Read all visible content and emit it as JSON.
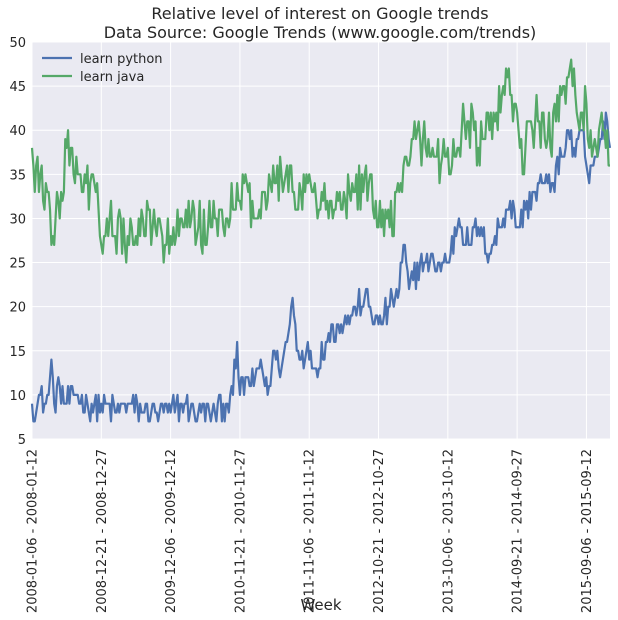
{
  "chart_data": {
    "type": "line",
    "title": "Relative level of interest on Google trends",
    "subtitle": "Data Source: Google Trends (www.google.com/trends)",
    "xlabel": "Week",
    "ylabel": "",
    "ylim": [
      5,
      50
    ],
    "yticks": [
      5,
      10,
      15,
      20,
      25,
      30,
      35,
      40,
      45,
      50
    ],
    "xticks": [
      {
        "label": "2008-01-06 - 2008-01-12",
        "index": 0
      },
      {
        "label": "2008-12-21 - 2008-12-27",
        "index": 50
      },
      {
        "label": "2009-12-06 - 2009-12-12",
        "index": 100
      },
      {
        "label": "2010-11-21 - 2010-11-27",
        "index": 150
      },
      {
        "label": "2011-11-06 - 2011-11-12",
        "index": 200
      },
      {
        "label": "2012-10-21 - 2012-10-27",
        "index": 250
      },
      {
        "label": "2013-10-06 - 2013-10-12",
        "index": 300
      },
      {
        "label": "2014-09-21 - 2014-09-27",
        "index": 350
      },
      {
        "label": "2015-09-06 - 2015-09-12",
        "index": 400
      }
    ],
    "n_points": 418,
    "legend_position": "top-left",
    "grid": true,
    "series": [
      {
        "name": "learn python",
        "color": "#4C72B0",
        "anchors": [
          [
            0,
            9
          ],
          [
            3,
            8
          ],
          [
            6,
            10
          ],
          [
            9,
            9
          ],
          [
            12,
            10
          ],
          [
            14,
            14
          ],
          [
            16,
            9
          ],
          [
            20,
            11
          ],
          [
            24,
            9
          ],
          [
            30,
            10
          ],
          [
            40,
            9
          ],
          [
            50,
            9
          ],
          [
            60,
            8
          ],
          [
            70,
            9
          ],
          [
            80,
            8
          ],
          [
            90,
            8
          ],
          [
            100,
            8
          ],
          [
            110,
            9
          ],
          [
            120,
            8
          ],
          [
            130,
            8
          ],
          [
            140,
            9
          ],
          [
            145,
            10
          ],
          [
            148,
            16
          ],
          [
            150,
            10
          ],
          [
            155,
            12
          ],
          [
            160,
            11
          ],
          [
            165,
            14
          ],
          [
            170,
            10
          ],
          [
            175,
            15
          ],
          [
            180,
            13
          ],
          [
            185,
            17
          ],
          [
            188,
            21
          ],
          [
            192,
            15
          ],
          [
            198,
            15
          ],
          [
            205,
            13
          ],
          [
            212,
            16
          ],
          [
            220,
            18
          ],
          [
            230,
            19
          ],
          [
            240,
            21
          ],
          [
            250,
            18
          ],
          [
            258,
            20
          ],
          [
            265,
            22
          ],
          [
            268,
            27
          ],
          [
            272,
            22
          ],
          [
            280,
            25
          ],
          [
            290,
            25
          ],
          [
            300,
            25
          ],
          [
            308,
            30
          ],
          [
            315,
            27
          ],
          [
            322,
            29
          ],
          [
            330,
            26
          ],
          [
            340,
            30
          ],
          [
            345,
            32
          ],
          [
            350,
            29
          ],
          [
            356,
            31
          ],
          [
            362,
            33
          ],
          [
            368,
            34
          ],
          [
            375,
            34
          ],
          [
            382,
            37
          ],
          [
            387,
            40
          ],
          [
            392,
            37
          ],
          [
            397,
            40
          ],
          [
            402,
            34
          ],
          [
            407,
            37
          ],
          [
            411,
            39
          ],
          [
            414,
            42
          ],
          [
            417,
            38
          ]
        ],
        "noise": 1.0
      },
      {
        "name": "learn java",
        "color": "#55A868",
        "anchors": [
          [
            0,
            38
          ],
          [
            2,
            33
          ],
          [
            4,
            37
          ],
          [
            8,
            32
          ],
          [
            12,
            33
          ],
          [
            14,
            27
          ],
          [
            18,
            33
          ],
          [
            22,
            32
          ],
          [
            26,
            40
          ],
          [
            30,
            35
          ],
          [
            36,
            33
          ],
          [
            42,
            34
          ],
          [
            48,
            31
          ],
          [
            52,
            28
          ],
          [
            56,
            30
          ],
          [
            60,
            28
          ],
          [
            64,
            30
          ],
          [
            68,
            25
          ],
          [
            72,
            29
          ],
          [
            76,
            27
          ],
          [
            80,
            30
          ],
          [
            90,
            28
          ],
          [
            100,
            28
          ],
          [
            110,
            29
          ],
          [
            115,
            30
          ],
          [
            120,
            29
          ],
          [
            130,
            29
          ],
          [
            140,
            30
          ],
          [
            150,
            32
          ],
          [
            155,
            34
          ],
          [
            160,
            30
          ],
          [
            165,
            30
          ],
          [
            170,
            32
          ],
          [
            175,
            34
          ],
          [
            180,
            35
          ],
          [
            186,
            36
          ],
          [
            190,
            31
          ],
          [
            194,
            33
          ],
          [
            198,
            35
          ],
          [
            205,
            32
          ],
          [
            210,
            32
          ],
          [
            218,
            31
          ],
          [
            225,
            33
          ],
          [
            230,
            32
          ],
          [
            240,
            35
          ],
          [
            246,
            31
          ],
          [
            252,
            29
          ],
          [
            258,
            29
          ],
          [
            266,
            34
          ],
          [
            272,
            36
          ],
          [
            278,
            40
          ],
          [
            284,
            38
          ],
          [
            290,
            37
          ],
          [
            298,
            37
          ],
          [
            305,
            37
          ],
          [
            310,
            40
          ],
          [
            315,
            41
          ],
          [
            322,
            38
          ],
          [
            330,
            40
          ],
          [
            335,
            42
          ],
          [
            340,
            45
          ],
          [
            345,
            44
          ],
          [
            350,
            42
          ],
          [
            354,
            35
          ],
          [
            360,
            41
          ],
          [
            366,
            41
          ],
          [
            372,
            39
          ],
          [
            378,
            41
          ],
          [
            384,
            45
          ],
          [
            388,
            47
          ],
          [
            392,
            44
          ],
          [
            396,
            42
          ],
          [
            400,
            43
          ],
          [
            404,
            37
          ],
          [
            408,
            37
          ],
          [
            412,
            40
          ],
          [
            417,
            36
          ]
        ],
        "noise": 1.8
      }
    ]
  }
}
